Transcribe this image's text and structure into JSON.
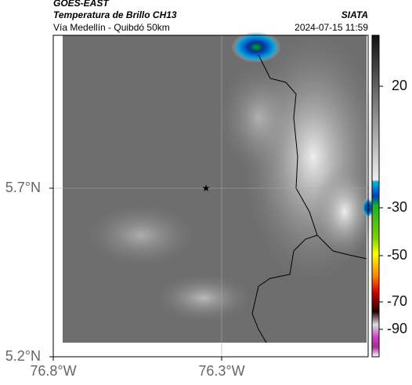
{
  "header": {
    "satellite": "GOES-EAST",
    "product": "Temperatura de Brillo CH13",
    "place": "Vía Medellín - Quibdó 50km",
    "source": "SIATA",
    "datetime": "2024-07-15 11:59"
  },
  "map": {
    "lon_ticks": [
      {
        "value": -76.8,
        "label": "76.8°W"
      },
      {
        "value": -76.3,
        "label": "76.3°W"
      }
    ],
    "lat_ticks": [
      {
        "value": 5.7,
        "label": "5.7°N"
      },
      {
        "value": 5.2,
        "label": "5.2°N"
      }
    ],
    "colorbar_ticks": [
      20,
      -30,
      -50,
      -70,
      -90
    ]
  }
}
